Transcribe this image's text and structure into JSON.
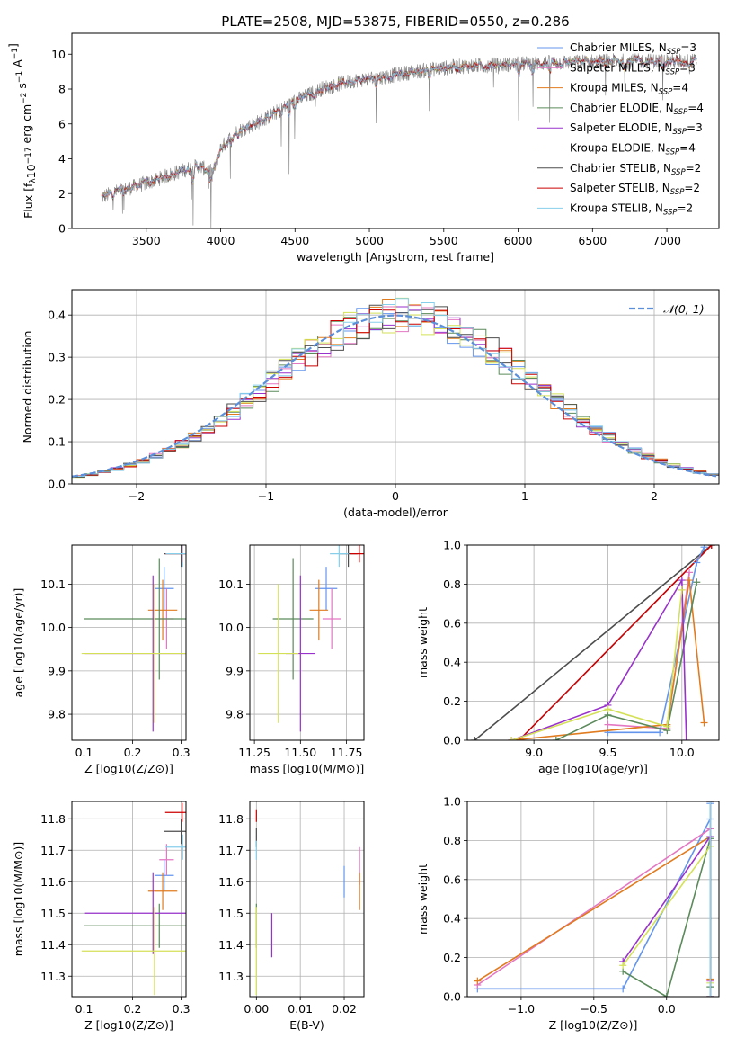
{
  "figure_title": "PLATE=2508, MJD=53875, FIBERID=0550, z=0.286",
  "colors": {
    "Chabrier MILES": "#6495ED",
    "Salpeter MILES": "#E377C2",
    "Kroupa MILES": "#E07B1F",
    "Chabrier ELODIE": "#5B8A5B",
    "Salpeter ELODIE": "#9932CC",
    "Kroupa ELODIE": "#D4E157",
    "Chabrier STELIB": "#4D4D4D",
    "Salpeter STELIB": "#CC0000",
    "Kroupa STELIB": "#87CEEB",
    "gaussian": "#5B8FD9"
  },
  "chart_data": [
    {
      "id": "spectrum",
      "type": "line",
      "title": "PLATE=2508, MJD=53875, FIBERID=0550, z=0.286",
      "xlabel": "wavelength [Angstrom, rest frame]",
      "ylabel": "Flux [f_λ10^-17 erg cm^-2 s^-1 A^-1]",
      "xlim": [
        3000,
        7350
      ],
      "ylim": [
        0,
        11.2
      ],
      "xticks": [
        3500,
        4000,
        4500,
        5000,
        5500,
        6000,
        6500,
        7000
      ],
      "yticks": [
        0,
        2,
        4,
        6,
        8,
        10
      ],
      "legend_position": "top-right",
      "legend": [
        {
          "series": "Chabrier MILES",
          "text": "Chabrier MILES, N",
          "sub": "SSP",
          "tail": "=3"
        },
        {
          "series": "Salpeter MILES",
          "text": "Salpeter MILES, N",
          "sub": "SSP",
          "tail": "=3"
        },
        {
          "series": "Kroupa MILES",
          "text": "Kroupa MILES, N",
          "sub": "SSP",
          "tail": "=4"
        },
        {
          "series": "Chabrier ELODIE",
          "text": "Chabrier ELODIE, N",
          "sub": "SSP",
          "tail": "=4"
        },
        {
          "series": "Salpeter ELODIE",
          "text": "Salpeter ELODIE, N",
          "sub": "SSP",
          "tail": "=3"
        },
        {
          "series": "Kroupa ELODIE",
          "text": "Kroupa ELODIE, N",
          "sub": "SSP",
          "tail": "=4"
        },
        {
          "series": "Chabrier STELIB",
          "text": "Chabrier STELIB, N",
          "sub": "SSP",
          "tail": "=2"
        },
        {
          "series": "Salpeter STELIB",
          "text": "Salpeter STELIB, N",
          "sub": "SSP",
          "tail": "=2"
        },
        {
          "series": "Kroupa STELIB",
          "text": "Kroupa STELIB, N",
          "sub": "SSP",
          "tail": "=2"
        }
      ],
      "observed_color": "#808080",
      "continuum_knots": {
        "x": [
          3200,
          3300,
          3500,
          3700,
          3850,
          3950,
          4000,
          4100,
          4300,
          4500,
          4700,
          4900,
          5100,
          5300,
          5600,
          5900,
          6200,
          6600,
          7000,
          7200
        ],
        "y": [
          1.8,
          2.1,
          2.6,
          3.2,
          3.6,
          3.2,
          4.6,
          5.5,
          6.3,
          7.3,
          8.1,
          8.5,
          8.7,
          9.0,
          9.3,
          9.4,
          9.5,
          9.6,
          9.6,
          9.6
        ]
      },
      "spectrum_range": [
        3200,
        7200
      ]
    },
    {
      "id": "residuals",
      "type": "line",
      "xlabel": "(data-model)/error",
      "ylabel": "Normed distribution",
      "xlim": [
        -2.5,
        2.5
      ],
      "ylim": [
        0,
        0.46
      ],
      "xticks": [
        -2,
        -1,
        0,
        1,
        2
      ],
      "yticks": [
        0.0,
        0.1,
        0.2,
        0.3,
        0.4
      ],
      "gaussian_legend": "𝒩(0, 1)",
      "legend_position": "top-right",
      "bin_width": 0.1
    },
    {
      "id": "age-vs-Z",
      "type": "scatter",
      "xlabel": "Z [log10(Z/Z⊙)]",
      "ylabel": "age  [log10(age/yr)]",
      "xlim": [
        0.075,
        0.31
      ],
      "ylim": [
        9.74,
        10.19
      ],
      "xticks": [
        0.1,
        0.2,
        0.3
      ],
      "yticks": [
        9.8,
        9.9,
        10.0,
        10.1
      ],
      "points": [
        {
          "series": "Chabrier MILES",
          "x": 0.265,
          "xerr": 0.02,
          "y": 10.09,
          "yerr": 0.05
        },
        {
          "series": "Salpeter MILES",
          "x": 0.27,
          "xerr": 0.015,
          "y": 10.02,
          "yerr": 0.07
        },
        {
          "series": "Kroupa MILES",
          "x": 0.262,
          "xerr": 0.03,
          "y": 10.04,
          "yerr": 0.07
        },
        {
          "series": "Chabrier ELODIE",
          "x": 0.255,
          "xerr": 0.155,
          "y": 10.02,
          "yerr": 0.14
        },
        {
          "series": "Salpeter ELODIE",
          "x": 0.242,
          "xerr": 0.14,
          "y": 9.94,
          "yerr": 0.18
        },
        {
          "series": "Kroupa ELODIE",
          "x": 0.245,
          "xerr": 0.15,
          "y": 9.94,
          "yerr": 0.16
        },
        {
          "series": "Chabrier STELIB",
          "x": 0.3,
          "xerr": 0.035,
          "y": 10.17,
          "yerr": 0.03
        },
        {
          "series": "Salpeter STELIB",
          "x": 0.302,
          "xerr": 0.035,
          "y": 10.17,
          "yerr": 0.02
        },
        {
          "series": "Kroupa STELIB",
          "x": 0.303,
          "xerr": 0.035,
          "y": 10.17,
          "yerr": 0.03
        }
      ]
    },
    {
      "id": "age-vs-mass",
      "type": "scatter",
      "xlabel": "mass [log10(M/M⊙)]",
      "ylabel": "",
      "xlim": [
        11.225,
        11.845
      ],
      "ylim": [
        9.74,
        10.19
      ],
      "xticks": [
        11.25,
        11.5,
        11.75
      ],
      "yticks": [
        9.8,
        9.9,
        10.0,
        10.1
      ],
      "points": [
        {
          "series": "Chabrier MILES",
          "x": 11.64,
          "xerr": 0.06,
          "y": 10.09,
          "yerr": 0.05
        },
        {
          "series": "Salpeter MILES",
          "x": 11.67,
          "xerr": 0.05,
          "y": 10.02,
          "yerr": 0.07
        },
        {
          "series": "Kroupa MILES",
          "x": 11.6,
          "xerr": 0.05,
          "y": 10.04,
          "yerr": 0.07
        },
        {
          "series": "Chabrier ELODIE",
          "x": 11.46,
          "xerr": 0.11,
          "y": 10.02,
          "yerr": 0.14
        },
        {
          "series": "Salpeter ELODIE",
          "x": 11.5,
          "xerr": 0.08,
          "y": 9.94,
          "yerr": 0.18
        },
        {
          "series": "Kroupa ELODIE",
          "x": 11.38,
          "xerr": 0.11,
          "y": 9.94,
          "yerr": 0.16
        },
        {
          "series": "Chabrier STELIB",
          "x": 11.76,
          "xerr": 0.05,
          "y": 10.17,
          "yerr": 0.03
        },
        {
          "series": "Salpeter STELIB",
          "x": 11.82,
          "xerr": 0.05,
          "y": 10.17,
          "yerr": 0.02
        },
        {
          "series": "Kroupa STELIB",
          "x": 11.71,
          "xerr": 0.05,
          "y": 10.17,
          "yerr": 0.03
        }
      ]
    },
    {
      "id": "mass-weight-vs-age",
      "type": "line",
      "xlabel": "age  [log10(age/yr)]",
      "ylabel": "mass weight",
      "xlim": [
        8.55,
        10.25
      ],
      "ylim": [
        0,
        1
      ],
      "xticks": [
        9.0,
        9.5,
        10.0
      ],
      "yticks": [
        0.0,
        0.2,
        0.4,
        0.6,
        0.8,
        1.0
      ],
      "series": [
        {
          "name": "Chabrier STELIB",
          "x": [
            8.6,
            10.2
          ],
          "y": [
            0.0,
            1.0
          ]
        },
        {
          "name": "Kroupa STELIB",
          "x": [
            8.9,
            10.2
          ],
          "y": [
            0.0,
            1.0
          ]
        },
        {
          "name": "Salpeter STELIB",
          "x": [
            8.9,
            10.2
          ],
          "y": [
            0.0,
            1.0
          ]
        },
        {
          "name": "Chabrier MILES",
          "x": [
            9.5,
            9.85,
            10.1,
            10.15
          ],
          "y": [
            0.04,
            0.04,
            0.91,
            0.99
          ]
        },
        {
          "name": "Salpeter MILES",
          "x": [
            9.5,
            9.9,
            10.05
          ],
          "y": [
            0.08,
            0.06,
            0.86
          ]
        },
        {
          "name": "Kroupa MILES",
          "x": [
            8.85,
            9.9,
            10.05,
            10.15
          ],
          "y": [
            0.0,
            0.08,
            0.82,
            0.09
          ]
        },
        {
          "name": "Chabrier ELODIE",
          "x": [
            9.15,
            9.5,
            9.9,
            10.1
          ],
          "y": [
            0.0,
            0.13,
            0.05,
            0.81
          ]
        },
        {
          "name": "Salpeter ELODIE",
          "x": [
            8.85,
            9.5,
            10.0,
            10.03
          ],
          "y": [
            0.0,
            0.18,
            0.82,
            0.0
          ]
        },
        {
          "name": "Kroupa ELODIE",
          "x": [
            8.85,
            9.5,
            9.9,
            10.0
          ],
          "y": [
            0.0,
            0.16,
            0.07,
            0.77
          ]
        }
      ]
    },
    {
      "id": "mass-vs-Z",
      "type": "scatter",
      "xlabel": "Z [log10(Z/Z⊙)]",
      "ylabel": "mass [log10(M/M⊙)]",
      "xlim": [
        0.075,
        0.31
      ],
      "ylim": [
        11.235,
        11.855
      ],
      "xticks": [
        0.1,
        0.2,
        0.3
      ],
      "yticks": [
        11.3,
        11.4,
        11.5,
        11.6,
        11.7,
        11.8
      ],
      "points": [
        {
          "series": "Chabrier MILES",
          "x": 0.265,
          "xerr": 0.02,
          "y": 11.62,
          "yerr": 0.05
        },
        {
          "series": "Salpeter MILES",
          "x": 0.27,
          "xerr": 0.015,
          "y": 11.67,
          "yerr": 0.05
        },
        {
          "series": "Kroupa MILES",
          "x": 0.262,
          "xerr": 0.03,
          "y": 11.57,
          "yerr": 0.06
        },
        {
          "series": "Chabrier ELODIE",
          "x": 0.255,
          "xerr": 0.155,
          "y": 11.46,
          "yerr": 0.07
        },
        {
          "series": "Salpeter ELODIE",
          "x": 0.242,
          "xerr": 0.14,
          "y": 11.5,
          "yerr": 0.13
        },
        {
          "series": "Kroupa ELODIE",
          "x": 0.245,
          "xerr": 0.15,
          "y": 11.38,
          "yerr": 0.14
        },
        {
          "series": "Chabrier STELIB",
          "x": 0.3,
          "xerr": 0.035,
          "y": 11.76,
          "yerr": 0.04
        },
        {
          "series": "Salpeter STELIB",
          "x": 0.302,
          "xerr": 0.035,
          "y": 11.82,
          "yerr": 0.03
        },
        {
          "series": "Kroupa STELIB",
          "x": 0.303,
          "xerr": 0.035,
          "y": 11.71,
          "yerr": 0.04
        }
      ]
    },
    {
      "id": "mass-vs-ebv",
      "type": "scatter",
      "xlabel": "E(B-V)",
      "ylabel": "",
      "xlim": [
        -0.0015,
        0.0245
      ],
      "ylim": [
        11.235,
        11.855
      ],
      "xticks": [
        0.0,
        0.01,
        0.02
      ],
      "xtick_labels": [
        "0.00",
        "0.01",
        "0.02"
      ],
      "yticks": [
        11.3,
        11.4,
        11.5,
        11.6,
        11.7,
        11.8
      ],
      "points": [
        {
          "series": "Chabrier MILES",
          "x": 0.02,
          "xerr": 0,
          "y": 11.6,
          "yerr": 0.05
        },
        {
          "series": "Salpeter MILES",
          "x": 0.0235,
          "xerr": 0,
          "y": 11.65,
          "yerr": 0.06
        },
        {
          "series": "Kroupa MILES",
          "x": 0.0235,
          "xerr": 0,
          "y": 11.57,
          "yerr": 0.06
        },
        {
          "series": "Chabrier ELODIE",
          "x": 0.0,
          "xerr": 0,
          "y": 11.46,
          "yerr": 0.07
        },
        {
          "series": "Salpeter ELODIE",
          "x": 0.0035,
          "xerr": 0,
          "y": 11.43,
          "yerr": 0.07
        },
        {
          "series": "Kroupa ELODIE",
          "x": 0.0,
          "xerr": 0,
          "y": 11.38,
          "yerr": 0.14
        },
        {
          "series": "Chabrier STELIB",
          "x": 0.0,
          "xerr": 0,
          "y": 11.74,
          "yerr": 0.03
        },
        {
          "series": "Salpeter STELIB",
          "x": 0.0,
          "xerr": 0,
          "y": 11.81,
          "yerr": 0.02
        },
        {
          "series": "Kroupa STELIB",
          "x": 0.0,
          "xerr": 0,
          "y": 11.7,
          "yerr": 0.03
        }
      ]
    },
    {
      "id": "mass-weight-vs-Z",
      "type": "line",
      "xlabel": "Z [log10(Z/Z⊙)]",
      "ylabel": "mass weight",
      "xlim": [
        -1.37,
        0.36
      ],
      "ylim": [
        0,
        1
      ],
      "xticks": [
        -1.0,
        -0.5,
        0.0
      ],
      "yticks": [
        0.0,
        0.2,
        0.4,
        0.6,
        0.8,
        1.0
      ],
      "series": [
        {
          "name": "Chabrier MILES",
          "x": [
            -1.3,
            -0.3,
            0.3,
            0.3
          ],
          "y": [
            0.04,
            0.04,
            0.91,
            0.99
          ]
        },
        {
          "name": "Salpeter MILES",
          "x": [
            -1.3,
            0.3,
            0.3
          ],
          "y": [
            0.06,
            0.86,
            0.08
          ]
        },
        {
          "name": "Kroupa MILES",
          "x": [
            -1.3,
            0.3,
            0.3
          ],
          "y": [
            0.08,
            0.82,
            0.09
          ]
        },
        {
          "name": "Chabrier ELODIE",
          "x": [
            -0.3,
            0.0,
            0.3,
            0.3
          ],
          "y": [
            0.13,
            0.0,
            0.81,
            0.05
          ]
        },
        {
          "name": "Salpeter ELODIE",
          "x": [
            -0.3,
            0.3,
            0.3
          ],
          "y": [
            0.18,
            0.82,
            0.0
          ]
        },
        {
          "name": "Kroupa ELODIE",
          "x": [
            -0.3,
            0.3,
            0.3
          ],
          "y": [
            0.16,
            0.77,
            0.07
          ]
        },
        {
          "name": "Chabrier STELIB",
          "x": [
            0.3,
            0.3
          ],
          "y": [
            0.0,
            1.0
          ]
        },
        {
          "name": "Salpeter STELIB",
          "x": [
            0.3,
            0.3
          ],
          "y": [
            0.0,
            1.0
          ]
        },
        {
          "name": "Kroupa STELIB",
          "x": [
            0.3,
            0.3
          ],
          "y": [
            0.0,
            1.0
          ]
        }
      ]
    }
  ]
}
